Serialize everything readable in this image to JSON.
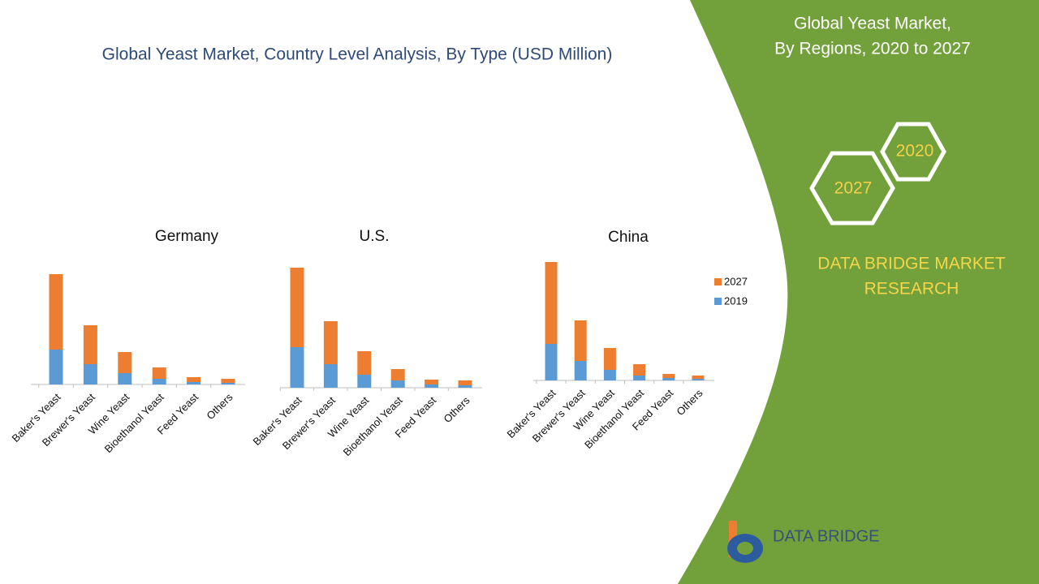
{
  "title": "Global Yeast Market, Country Level Analysis, By Type (USD Million)",
  "panel": {
    "title_lines": [
      "Global Yeast Market,",
      "By Regions, 2020 to 2027"
    ],
    "hexagons": [
      "2020",
      "2027"
    ],
    "brand_lines": [
      "DATA BRIDGE MARKET",
      "RESEARCH"
    ]
  },
  "logo": "DATA BRIDGE",
  "chart_data": [
    {
      "type": "bar",
      "stacked": true,
      "title": "Germany",
      "categories": [
        "Baker's Yeast",
        "Brewer's Yeast",
        "Wine Yeast",
        "Bioethanol Yeast",
        "Feed Yeast",
        "Others"
      ],
      "series": [
        {
          "name": "2019",
          "color": "#5b9bd5",
          "values": [
            43,
            25,
            14,
            7,
            3,
            2
          ]
        },
        {
          "name": "2027",
          "color": "#ed7d31",
          "values": [
            93,
            48,
            26,
            14,
            6,
            5
          ]
        }
      ]
    },
    {
      "type": "bar",
      "stacked": true,
      "title": "U.S.",
      "categories": [
        "Baker's Yeast",
        "Brewer's Yeast",
        "Wine Yeast",
        "Bioethanol Yeast",
        "Feed Yeast",
        "Others"
      ],
      "series": [
        {
          "name": "2019",
          "color": "#5b9bd5",
          "values": [
            50,
            29,
            16,
            9,
            4,
            3
          ]
        },
        {
          "name": "2027",
          "color": "#ed7d31",
          "values": [
            98,
            53,
            29,
            14,
            6,
            6
          ]
        }
      ]
    },
    {
      "type": "bar",
      "stacked": true,
      "title": "China",
      "legend": "right",
      "categories": [
        "Baker's Yeast",
        "Brewer's Yeast",
        "Wine Yeast",
        "Bioethanol Yeast",
        "Feed Yeast",
        "Others"
      ],
      "series": [
        {
          "name": "2019",
          "color": "#5b9bd5",
          "values": [
            45,
            24,
            13,
            6,
            3,
            2
          ]
        },
        {
          "name": "2027",
          "color": "#ed7d31",
          "values": [
            101,
            50,
            27,
            14,
            5,
            4
          ]
        }
      ]
    }
  ]
}
